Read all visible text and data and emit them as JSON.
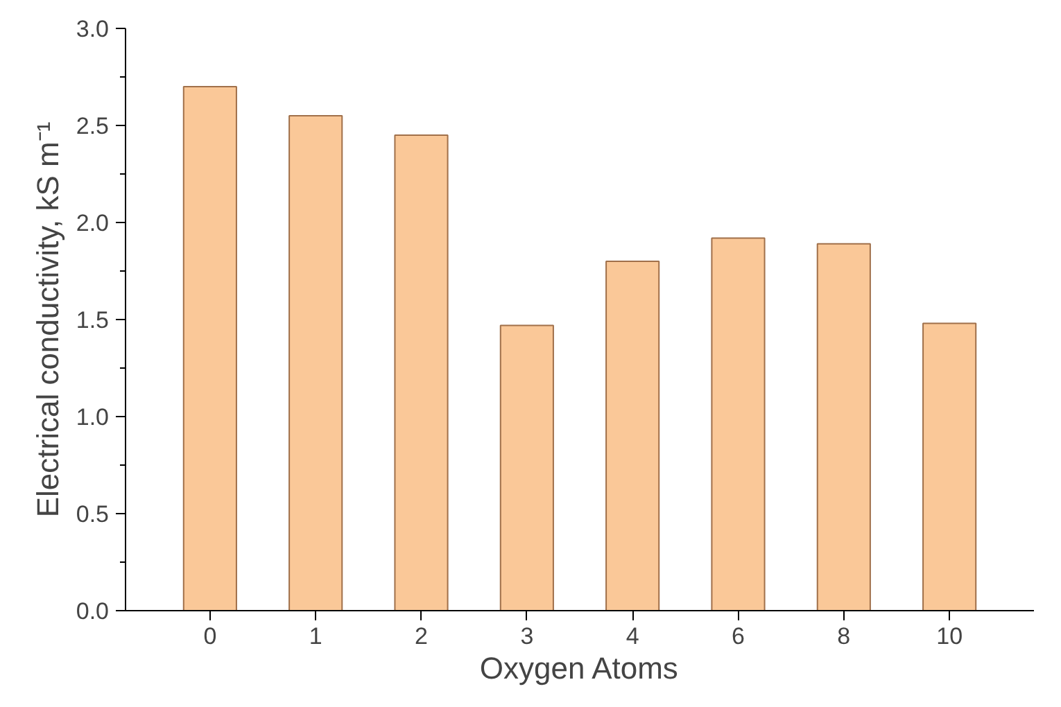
{
  "chart_data": {
    "type": "bar",
    "xlabel": "Oxygen Atoms",
    "ylabel": "Electrical conductivity, kS m⁻¹",
    "categories": [
      "0",
      "1",
      "2",
      "3",
      "4",
      "6",
      "8",
      "10"
    ],
    "values": [
      2.7,
      2.55,
      2.45,
      1.47,
      1.8,
      1.92,
      1.89,
      1.48
    ],
    "color": "#fac898",
    "ylim": [
      0,
      3.0
    ],
    "yticks": [
      {
        "value": 0,
        "label": "0.0"
      },
      0.5,
      {
        "value": 1,
        "label": "1.0"
      },
      1.5,
      {
        "value": 2,
        "label": "2.0"
      },
      2.5,
      {
        "value": 3,
        "label": "3.0"
      }
    ],
    "grid": false
  }
}
